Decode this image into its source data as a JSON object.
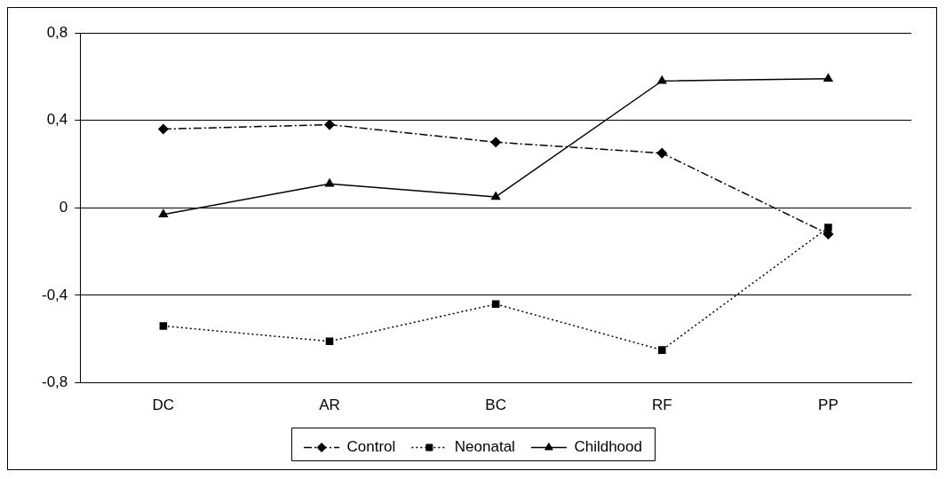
{
  "chart_data": {
    "type": "line",
    "categories": [
      "DC",
      "AR",
      "BC",
      "RF",
      "PP"
    ],
    "series": [
      {
        "name": "Control",
        "color": "#000000",
        "values": [
          0.36,
          0.38,
          0.3,
          0.25,
          -0.12
        ],
        "marker": "diamond",
        "line_style": "dashed"
      },
      {
        "name": "Neonatal",
        "color": "#000000",
        "values": [
          -0.54,
          -0.61,
          -0.44,
          -0.65,
          -0.09
        ],
        "marker": "square",
        "line_style": "dotted"
      },
      {
        "name": "Childhood",
        "color": "#000000",
        "values": [
          -0.03,
          0.11,
          0.05,
          0.58,
          0.59
        ],
        "marker": "triangle",
        "line_style": "solid"
      }
    ],
    "ylim": [
      -0.8,
      0.8
    ],
    "yticks": [
      {
        "value": -0.8,
        "label": "-0,8"
      },
      {
        "value": -0.4,
        "label": "-0,4"
      },
      {
        "value": 0,
        "label": "0"
      },
      {
        "value": 0.4,
        "label": "0,4"
      },
      {
        "value": 0.8,
        "label": "0,8"
      }
    ],
    "grid": "y",
    "legend": "bottom"
  }
}
